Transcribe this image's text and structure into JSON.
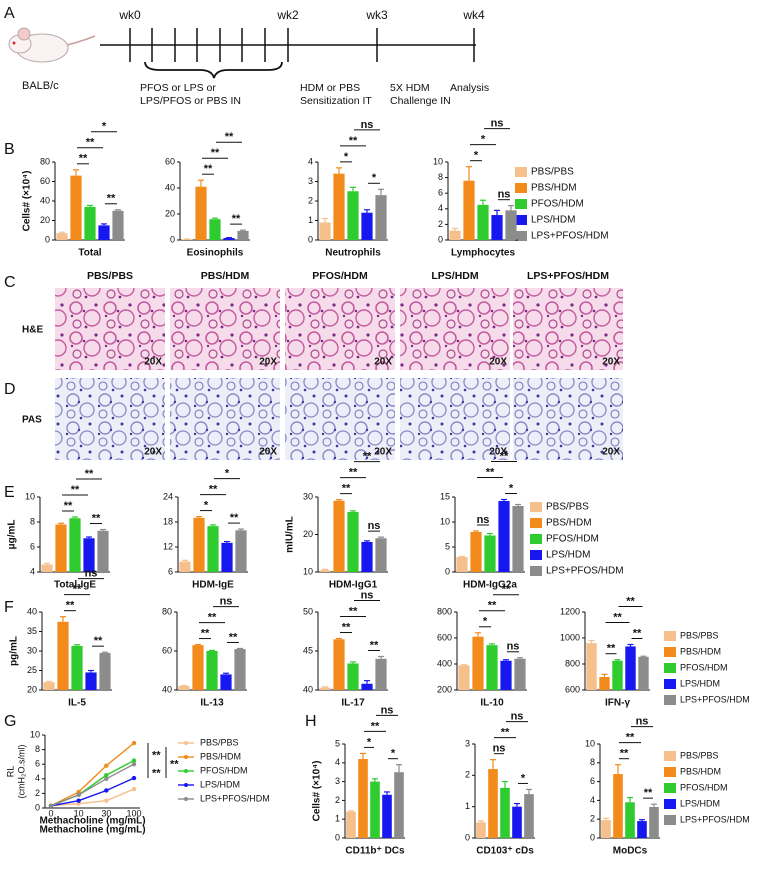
{
  "panel_labels": [
    "A",
    "B",
    "C",
    "D",
    "E",
    "F",
    "G",
    "H"
  ],
  "timeline": {
    "weeks": [
      "wk0",
      "wk2",
      "wk3",
      "wk4"
    ],
    "strain": "BALB/c",
    "steps": [
      [
        "PFOS or LPS or",
        "LPS/PFOS or PBS IN"
      ],
      [
        "HDM or PBS",
        "Sensitization IT"
      ],
      [
        "5X HDM",
        "Challenge IN"
      ],
      [
        "Analysis"
      ]
    ]
  },
  "groups": {
    "names": [
      "PBS/PBS",
      "PBS/HDM",
      "PFOS/HDM",
      "LPS/HDM",
      "LPS+PFOS/HDM"
    ],
    "colors": [
      "#f5c08c",
      "#f28a1c",
      "#2fcc2f",
      "#1717f0",
      "#8c8c8c"
    ]
  },
  "histology": {
    "columns": [
      "PBS/PBS",
      "PBS/HDM",
      "PFOS/HDM",
      "LPS/HDM",
      "LPS+PFOS/HDM"
    ],
    "rows": [
      "H&E",
      "PAS"
    ],
    "magnification": "20X"
  },
  "chart_data": [
    {
      "type": "bar",
      "xlabel": "Total",
      "ylabel": "Cells# (×10⁴)",
      "values": [
        7,
        66,
        34,
        15,
        30
      ],
      "errors": [
        1,
        6,
        1.5,
        1.5,
        1
      ],
      "ylim": [
        0,
        80
      ],
      "yticks": [
        0,
        20,
        40,
        60,
        80
      ],
      "comparisons": [
        {
          "bars": [
            1,
            3
          ],
          "label": "**"
        },
        {
          "bars": [
            1,
            2
          ],
          "label": "**"
        },
        {
          "bars": [
            2,
            4
          ],
          "label": "*"
        },
        {
          "bars": [
            3,
            4
          ],
          "label": "**"
        }
      ]
    },
    {
      "type": "bar",
      "xlabel": "Eosinophils",
      "values": [
        0.5,
        41,
        16,
        1.5,
        7
      ],
      "errors": [
        0.3,
        5,
        0.8,
        0.3,
        0.6
      ],
      "ylim": [
        0,
        60
      ],
      "yticks": [
        0,
        20,
        40,
        60
      ],
      "comparisons": [
        {
          "bars": [
            1,
            3
          ],
          "label": "**"
        },
        {
          "bars": [
            1,
            2
          ],
          "label": "**"
        },
        {
          "bars": [
            2,
            4
          ],
          "label": "**"
        },
        {
          "bars": [
            3,
            4
          ],
          "label": "**"
        }
      ]
    },
    {
      "type": "bar",
      "xlabel": "Neutrophils",
      "values": [
        0.9,
        3.4,
        2.5,
        1.4,
        2.3
      ],
      "errors": [
        0.2,
        0.3,
        0.2,
        0.15,
        0.3
      ],
      "ylim": [
        0,
        4
      ],
      "yticks": [
        0,
        1,
        2,
        3,
        4
      ],
      "comparisons": [
        {
          "bars": [
            1,
            3
          ],
          "label": "**"
        },
        {
          "bars": [
            1,
            2
          ],
          "label": "*"
        },
        {
          "bars": [
            2,
            4
          ],
          "label": "ns"
        },
        {
          "bars": [
            3,
            4
          ],
          "label": "*"
        }
      ]
    },
    {
      "type": "bar",
      "xlabel": "Lymphocytes",
      "values": [
        1.2,
        7.6,
        4.5,
        3.2,
        3.8
      ],
      "errors": [
        0.3,
        1.8,
        0.6,
        0.6,
        0.6
      ],
      "ylim": [
        0,
        10
      ],
      "yticks": [
        0,
        2,
        4,
        6,
        8,
        10
      ],
      "comparisons": [
        {
          "bars": [
            1,
            3
          ],
          "label": "*"
        },
        {
          "bars": [
            1,
            2
          ],
          "label": "*"
        },
        {
          "bars": [
            2,
            4
          ],
          "label": "ns"
        },
        {
          "bars": [
            3,
            4
          ],
          "label": "ns"
        }
      ]
    },
    {
      "type": "bar",
      "xlabel": "Total-IgE",
      "ylabel": "μg/mL",
      "values": [
        4.6,
        7.8,
        8.3,
        6.7,
        7.3
      ],
      "errors": [
        0.1,
        0.1,
        0.1,
        0.1,
        0.1
      ],
      "ylim": [
        4,
        10
      ],
      "yticks": [
        4,
        6,
        8,
        10
      ],
      "comparisons": [
        {
          "bars": [
            1,
            3
          ],
          "label": "**"
        },
        {
          "bars": [
            1,
            2
          ],
          "label": "**"
        },
        {
          "bars": [
            2,
            4
          ],
          "label": "**"
        },
        {
          "bars": [
            3,
            4
          ],
          "label": "**"
        }
      ]
    },
    {
      "type": "bar",
      "xlabel": "HDM-IgE",
      "values": [
        8.5,
        19,
        17,
        13,
        16
      ],
      "errors": [
        0.3,
        0.3,
        0.3,
        0.3,
        0.3
      ],
      "ylim": [
        6,
        24
      ],
      "yticks": [
        6,
        12,
        18,
        24
      ],
      "comparisons": [
        {
          "bars": [
            1,
            3
          ],
          "label": "**"
        },
        {
          "bars": [
            1,
            2
          ],
          "label": "*"
        },
        {
          "bars": [
            2,
            4
          ],
          "label": "*"
        },
        {
          "bars": [
            3,
            4
          ],
          "label": "**"
        }
      ]
    },
    {
      "type": "bar",
      "xlabel": "HDM-IgG1",
      "ylabel": "mIU/mL",
      "values": [
        10.5,
        29,
        26,
        18,
        19
      ],
      "errors": [
        0.2,
        0.3,
        0.3,
        0.3,
        0.3
      ],
      "ylim": [
        10,
        30
      ],
      "yticks": [
        10,
        20,
        30
      ],
      "comparisons": [
        {
          "bars": [
            1,
            3
          ],
          "label": "**"
        },
        {
          "bars": [
            1,
            2
          ],
          "label": "**"
        },
        {
          "bars": [
            2,
            4
          ],
          "label": "**"
        },
        {
          "bars": [
            3,
            4
          ],
          "label": "ns"
        }
      ]
    },
    {
      "type": "bar",
      "xlabel": "HDM-IgG2a",
      "values": [
        3,
        8,
        7.3,
        14.2,
        13.2
      ],
      "errors": [
        0.1,
        0.2,
        0.4,
        0.3,
        0.3
      ],
      "ylim": [
        0,
        15
      ],
      "yticks": [
        0,
        5,
        10,
        15
      ],
      "comparisons": [
        {
          "bars": [
            1,
            3
          ],
          "label": "**"
        },
        {
          "bars": [
            2,
            4
          ],
          "label": "**"
        },
        {
          "bars": [
            1,
            2
          ],
          "label": "ns"
        },
        {
          "bars": [
            3,
            4
          ],
          "label": "*"
        }
      ]
    },
    {
      "type": "bar",
      "xlabel": "IL-5",
      "ylabel": "pg/mL",
      "values": [
        22,
        37.5,
        31.3,
        24.5,
        29.5
      ],
      "errors": [
        0.2,
        1.3,
        0.3,
        0.5,
        0.2
      ],
      "ylim": [
        20,
        40
      ],
      "yticks": [
        20,
        25,
        30,
        35,
        40
      ],
      "comparisons": [
        {
          "bars": [
            1,
            3
          ],
          "label": "**"
        },
        {
          "bars": [
            1,
            2
          ],
          "label": "**"
        },
        {
          "bars": [
            2,
            4
          ],
          "label": "ns"
        },
        {
          "bars": [
            3,
            4
          ],
          "label": "**"
        }
      ]
    },
    {
      "type": "bar",
      "xlabel": "IL-13",
      "values": [
        42,
        63,
        60,
        48,
        61
      ],
      "errors": [
        0.3,
        0.3,
        0.3,
        0.6,
        0.3
      ],
      "ylim": [
        40,
        80
      ],
      "yticks": [
        40,
        60,
        80
      ],
      "comparisons": [
        {
          "bars": [
            1,
            3
          ],
          "label": "**"
        },
        {
          "bars": [
            1,
            2
          ],
          "label": "**"
        },
        {
          "bars": [
            2,
            4
          ],
          "label": "ns"
        },
        {
          "bars": [
            3,
            4
          ],
          "label": "**"
        }
      ]
    },
    {
      "type": "bar",
      "xlabel": "IL-17",
      "values": [
        40.3,
        46.5,
        43.4,
        40.8,
        44
      ],
      "errors": [
        0.1,
        0.1,
        0.2,
        0.4,
        0.3
      ],
      "ylim": [
        40,
        50
      ],
      "yticks": [
        40,
        45,
        50
      ],
      "comparisons": [
        {
          "bars": [
            1,
            3
          ],
          "label": "**"
        },
        {
          "bars": [
            1,
            2
          ],
          "label": "**"
        },
        {
          "bars": [
            2,
            4
          ],
          "label": "ns"
        },
        {
          "bars": [
            3,
            4
          ],
          "label": "**"
        }
      ]
    },
    {
      "type": "bar",
      "xlabel": "IL-10",
      "values": [
        390,
        610,
        545,
        425,
        440
      ],
      "errors": [
        5,
        30,
        10,
        8,
        8
      ],
      "ylim": [
        200,
        800
      ],
      "yticks": [
        200,
        400,
        600,
        800
      ],
      "comparisons": [
        {
          "bars": [
            1,
            3
          ],
          "label": "**"
        },
        {
          "bars": [
            1,
            2
          ],
          "label": "*"
        },
        {
          "bars": [
            2,
            4
          ],
          "label": "**"
        },
        {
          "bars": [
            3,
            4
          ],
          "label": "ns"
        }
      ]
    },
    {
      "type": "bar",
      "xlabel": "IFN-γ",
      "values": [
        960,
        700,
        825,
        935,
        855
      ],
      "errors": [
        20,
        20,
        8,
        15,
        5
      ],
      "ylim": [
        600,
        1200
      ],
      "yticks": [
        600,
        800,
        1000,
        1200
      ],
      "comparisons": [
        {
          "bars": [
            1,
            3
          ],
          "label": "**"
        },
        {
          "bars": [
            2,
            4
          ],
          "label": "**"
        },
        {
          "bars": [
            1,
            2
          ],
          "label": "**"
        },
        {
          "bars": [
            3,
            4
          ],
          "label": "**"
        }
      ]
    },
    {
      "type": "line",
      "xlabel": "Methacholine (mg/mL)",
      "ylabel": [
        "RL",
        "(cmH₂O.s/ml)"
      ],
      "categories": [
        "0",
        "10",
        "30",
        "100"
      ],
      "ylim": [
        0,
        10
      ],
      "yticks": [
        0,
        2,
        4,
        6,
        8,
        10
      ],
      "series": [
        {
          "name": "PBS/PBS",
          "color": "#f5c08c",
          "values": [
            0.3,
            0.6,
            1.0,
            2.6
          ]
        },
        {
          "name": "PBS/HDM",
          "color": "#f28a1c",
          "values": [
            0.3,
            2.2,
            5.8,
            8.9
          ]
        },
        {
          "name": "PFOS/HDM",
          "color": "#2fcc2f",
          "values": [
            0.3,
            1.8,
            4.5,
            6.5
          ]
        },
        {
          "name": "LPS/HDM",
          "color": "#1717f0",
          "values": [
            0.3,
            1.0,
            2.4,
            4.1
          ]
        },
        {
          "name": "LPS+PFOS/HDM",
          "color": "#8c8c8c",
          "values": [
            0.3,
            1.8,
            4.0,
            6.0
          ]
        }
      ],
      "annotations": [
        "**",
        "**",
        "**"
      ]
    },
    {
      "type": "bar",
      "xlabel": "CD11b⁺ DCs",
      "ylabel": "Cells# (×10⁴)",
      "values": [
        1.4,
        4.2,
        3.0,
        2.3,
        3.5
      ],
      "errors": [
        0.05,
        0.3,
        0.15,
        0.15,
        0.4
      ],
      "ylim": [
        0,
        5
      ],
      "yticks": [
        0,
        1,
        2,
        3,
        4,
        5
      ],
      "comparisons": [
        {
          "bars": [
            1,
            3
          ],
          "label": "**"
        },
        {
          "bars": [
            1,
            2
          ],
          "label": "*"
        },
        {
          "bars": [
            2,
            4
          ],
          "label": "ns"
        },
        {
          "bars": [
            3,
            4
          ],
          "label": "*"
        }
      ]
    },
    {
      "type": "bar",
      "xlabel": "CD103⁺ cDs",
      "values": [
        0.5,
        2.2,
        1.6,
        1.0,
        1.4
      ],
      "errors": [
        0.05,
        0.3,
        0.2,
        0.1,
        0.15
      ],
      "ylim": [
        0,
        3
      ],
      "yticks": [
        0,
        1,
        2,
        3
      ],
      "comparisons": [
        {
          "bars": [
            1,
            3
          ],
          "label": "**"
        },
        {
          "bars": [
            1,
            2
          ],
          "label": "ns"
        },
        {
          "bars": [
            2,
            4
          ],
          "label": "ns"
        },
        {
          "bars": [
            3,
            4
          ],
          "label": "*"
        }
      ]
    },
    {
      "type": "bar",
      "xlabel": "MoDCs",
      "values": [
        1.9,
        6.8,
        3.8,
        1.8,
        3.3
      ],
      "errors": [
        0.2,
        1.0,
        0.5,
        0.15,
        0.3
      ],
      "ylim": [
        0,
        10
      ],
      "yticks": [
        0,
        2,
        4,
        6,
        8,
        10
      ],
      "comparisons": [
        {
          "bars": [
            1,
            3
          ],
          "label": "**"
        },
        {
          "bars": [
            1,
            2
          ],
          "label": "**"
        },
        {
          "bars": [
            2,
            4
          ],
          "label": "ns"
        },
        {
          "bars": [
            3,
            4
          ],
          "label": "**"
        }
      ]
    }
  ]
}
